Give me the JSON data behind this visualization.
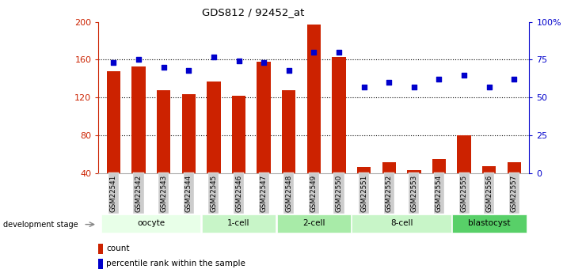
{
  "title": "GDS812 / 92452_at",
  "samples": [
    "GSM22541",
    "GSM22542",
    "GSM22543",
    "GSM22544",
    "GSM22545",
    "GSM22546",
    "GSM22547",
    "GSM22548",
    "GSM22549",
    "GSM22550",
    "GSM22551",
    "GSM22552",
    "GSM22553",
    "GSM22554",
    "GSM22555",
    "GSM22556",
    "GSM22557"
  ],
  "counts": [
    148,
    153,
    128,
    124,
    137,
    122,
    158,
    128,
    197,
    163,
    47,
    52,
    43,
    55,
    80,
    48,
    52
  ],
  "percentile": [
    73,
    75,
    70,
    68,
    77,
    74,
    73,
    68,
    80,
    80,
    57,
    60,
    57,
    62,
    65,
    57,
    62
  ],
  "ylim_left": [
    40,
    200
  ],
  "ylim_right": [
    0,
    100
  ],
  "yticks_left": [
    40,
    80,
    120,
    160,
    200
  ],
  "yticks_right": [
    0,
    25,
    50,
    75,
    100
  ],
  "ytick_labels_right": [
    "0",
    "25",
    "50",
    "75",
    "100%"
  ],
  "bar_color": "#cc2200",
  "dot_color": "#0000cc",
  "groups": [
    {
      "label": "oocyte",
      "start": 0,
      "end": 4,
      "color": "#e8ffe8"
    },
    {
      "label": "1-cell",
      "start": 4,
      "end": 7,
      "color": "#c8f5c8"
    },
    {
      "label": "2-cell",
      "start": 7,
      "end": 10,
      "color": "#a8eba8"
    },
    {
      "label": "8-cell",
      "start": 10,
      "end": 14,
      "color": "#c8f5c8"
    },
    {
      "label": "blastocyst",
      "start": 14,
      "end": 17,
      "color": "#58d068"
    }
  ],
  "xlabel_stage": "development stage",
  "legend_count_label": "count",
  "legend_pct_label": "percentile rank within the sample",
  "tick_label_color_left": "#cc2200",
  "tick_label_color_right": "#0000cc",
  "bg_color": "#ffffff",
  "xticklabel_bg": "#cccccc",
  "grid_yticks": [
    80,
    120,
    160
  ]
}
